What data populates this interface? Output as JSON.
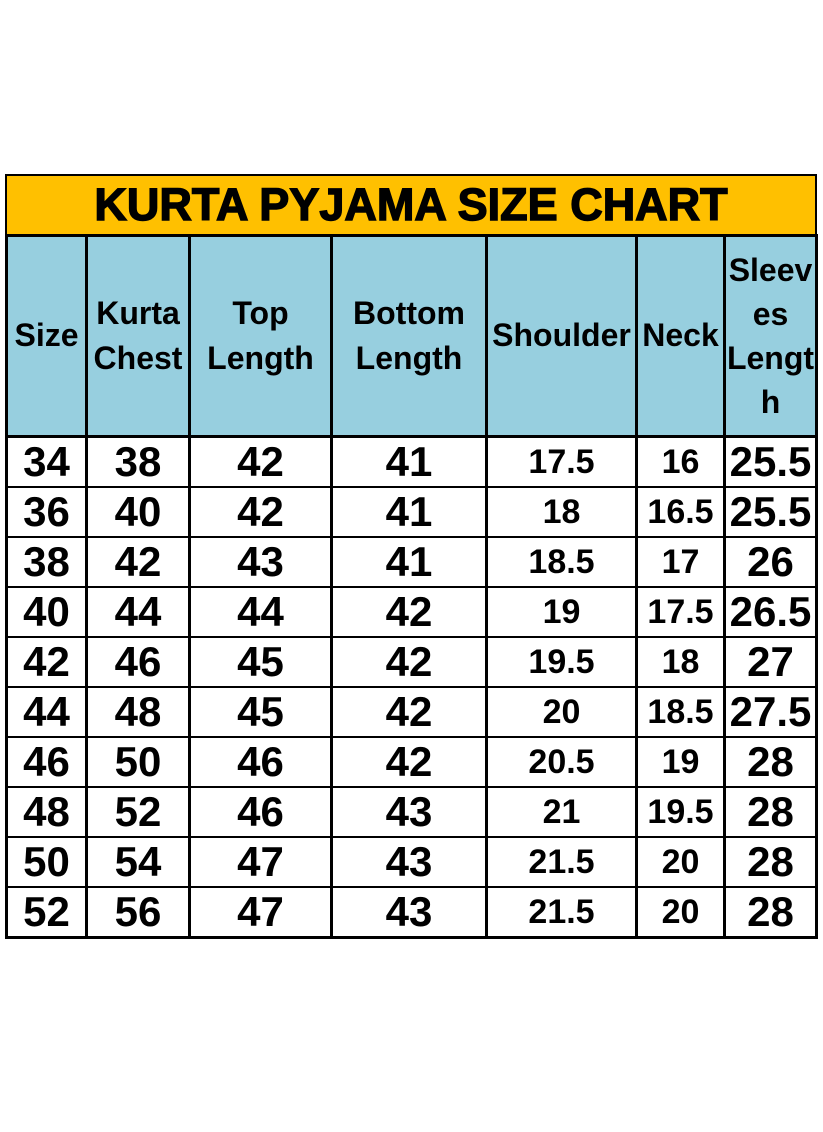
{
  "banner": {
    "title": "KURTA PYJAMA SIZE CHART",
    "bg_color": "#FFC000",
    "text_color": "#000000"
  },
  "table": {
    "header_bg_color": "#97CFDF",
    "border_color": "#000000",
    "headers": [
      "Size",
      "Kurta\nChest",
      "Top\nLength",
      "Bottom\nLength",
      "Shoulder",
      "Neck",
      "Sleev\nes\nLengt\nh"
    ],
    "rows": [
      [
        "34",
        "38",
        "42",
        "41",
        "17.5",
        "16",
        "25.5"
      ],
      [
        "36",
        "40",
        "42",
        "41",
        "18",
        "16.5",
        "25.5"
      ],
      [
        "38",
        "42",
        "43",
        "41",
        "18.5",
        "17",
        "26"
      ],
      [
        "40",
        "44",
        "44",
        "42",
        "19",
        "17.5",
        "26.5"
      ],
      [
        "42",
        "46",
        "45",
        "42",
        "19.5",
        "18",
        "27"
      ],
      [
        "44",
        "48",
        "45",
        "42",
        "20",
        "18.5",
        "27.5"
      ],
      [
        "46",
        "50",
        "46",
        "42",
        "20.5",
        "19",
        "28"
      ],
      [
        "48",
        "52",
        "46",
        "43",
        "21",
        "19.5",
        "28"
      ],
      [
        "50",
        "54",
        "47",
        "43",
        "21.5",
        "20",
        "28"
      ],
      [
        "52",
        "56",
        "47",
        "43",
        "21.5",
        "20",
        "28"
      ]
    ]
  },
  "chart_data": {
    "type": "table",
    "title": "KURTA PYJAMA SIZE CHART",
    "columns": [
      "Size",
      "Kurta Chest",
      "Top Length",
      "Bottom Length",
      "Shoulder",
      "Neck",
      "Sleeves Length"
    ],
    "rows": [
      [
        34,
        38,
        42,
        41,
        17.5,
        16,
        25.5
      ],
      [
        36,
        40,
        42,
        41,
        18,
        16.5,
        25.5
      ],
      [
        38,
        42,
        43,
        41,
        18.5,
        17,
        26
      ],
      [
        40,
        44,
        44,
        42,
        19,
        17.5,
        26.5
      ],
      [
        42,
        46,
        45,
        42,
        19.5,
        18,
        27
      ],
      [
        44,
        48,
        45,
        42,
        20,
        18.5,
        27.5
      ],
      [
        46,
        50,
        46,
        42,
        20.5,
        19,
        28
      ],
      [
        48,
        52,
        46,
        43,
        21,
        19.5,
        28
      ],
      [
        50,
        54,
        47,
        43,
        21.5,
        20,
        28
      ],
      [
        52,
        56,
        47,
        43,
        21.5,
        20,
        28
      ]
    ]
  }
}
